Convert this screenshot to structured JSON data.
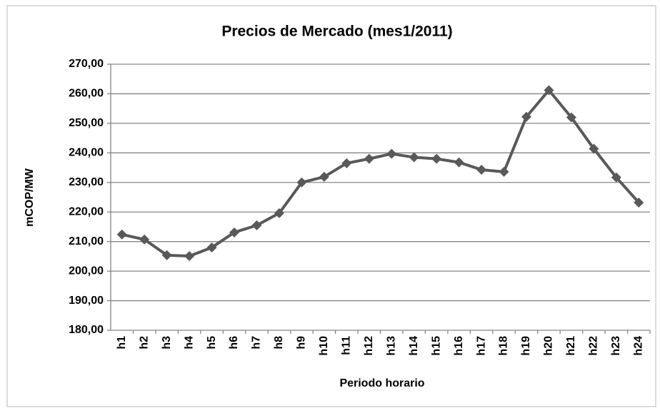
{
  "chart_data": {
    "type": "line",
    "title": "Precios de Mercado (mes1/2011)",
    "x_label": "Periodo horario",
    "y_label": "mCOP/MW",
    "categories": [
      "h1",
      "h2",
      "h3",
      "h4",
      "h5",
      "h6",
      "h7",
      "h8",
      "h9",
      "h10",
      "h11",
      "h12",
      "h13",
      "h14",
      "h15",
      "h16",
      "h17",
      "h18",
      "h19",
      "h20",
      "h21",
      "h22",
      "h23",
      "h24"
    ],
    "values": [
      212.4,
      210.7,
      205.4,
      205.1,
      208,
      213.1,
      215.5,
      219.6,
      230,
      231.9,
      236.5,
      238,
      239.7,
      238.5,
      238,
      236.8,
      234.3,
      233.6,
      252.2,
      261.2,
      252,
      241.4,
      231.7,
      223.2
    ],
    "color": "#595959",
    "ylim": [
      180,
      270
    ],
    "yticks": [
      {
        "value": 180,
        "label": "180,00"
      },
      {
        "value": 190,
        "label": "190,00"
      },
      {
        "value": 200,
        "label": "200,00"
      },
      {
        "value": 210,
        "label": "210,00"
      },
      {
        "value": 220,
        "label": "220,00"
      },
      {
        "value": 230,
        "label": "230,00"
      },
      {
        "value": 240,
        "label": "240,00"
      },
      {
        "value": 250,
        "label": "250,00"
      },
      {
        "value": 260,
        "label": "260,00"
      },
      {
        "value": 270,
        "label": "270,00"
      }
    ],
    "grid": true
  }
}
